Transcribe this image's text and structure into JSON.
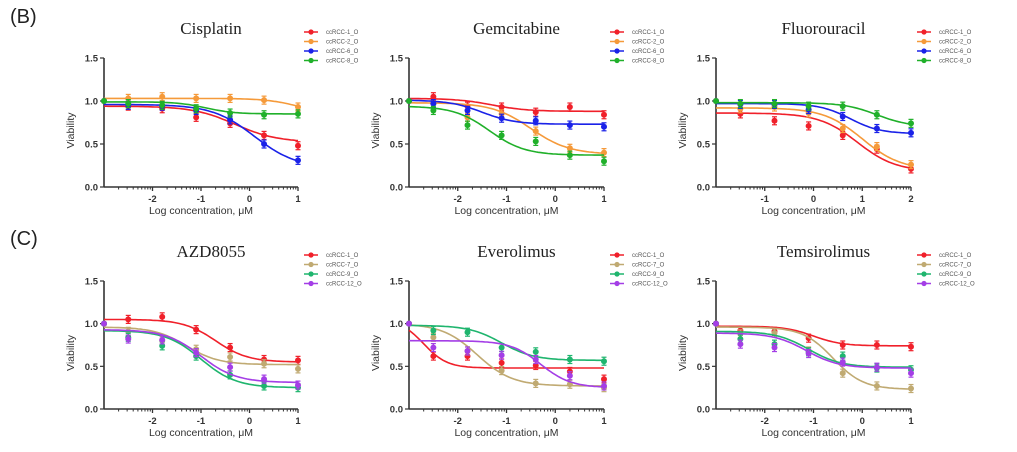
{
  "figure": {
    "panel_labels": [
      "(B)",
      "(C)"
    ]
  },
  "chart_data": [
    {
      "type": "line",
      "panel": "B",
      "title": "Cisplatin",
      "xlabel": "Log concentration, μM",
      "ylabel": "Viability",
      "xlim": [
        -3,
        1
      ],
      "ylim": [
        0,
        1.5
      ],
      "xticks": [
        -2,
        -1,
        0,
        1
      ],
      "yticks": [
        "0.0",
        "0.5",
        "1.0",
        "1.5"
      ],
      "legend_position": "top-right",
      "x": [
        -3,
        -2.5,
        -1.8,
        -1.1,
        -0.4,
        0.3,
        1.0
      ],
      "series": [
        {
          "name": "ccRCC-1_O",
          "color": "#f0202a",
          "values": [
            1.0,
            0.94,
            0.91,
            0.81,
            0.74,
            0.6,
            0.48
          ],
          "fit": {
            "top": 0.94,
            "bottom": 0.52,
            "ec50": -0.3,
            "hill": 1.0
          }
        },
        {
          "name": "ccRCC-2_O",
          "color": "#f59a3a",
          "values": [
            1.0,
            1.03,
            1.05,
            1.03,
            1.03,
            1.01,
            0.93
          ],
          "fit": {
            "top": 1.03,
            "bottom": 0.85,
            "ec50": 1.0,
            "hill": 1.3
          }
        },
        {
          "name": "ccRCC-6_O",
          "color": "#1a22e8",
          "values": [
            1.0,
            0.95,
            0.94,
            0.89,
            0.78,
            0.5,
            0.31
          ],
          "fit": {
            "top": 0.96,
            "bottom": 0.22,
            "ec50": 0.1,
            "hill": 1.0
          }
        },
        {
          "name": "ccRCC-8_O",
          "color": "#20b02a",
          "values": [
            1.0,
            0.97,
            0.95,
            0.91,
            0.86,
            0.84,
            0.85
          ],
          "fit": {
            "top": 0.99,
            "bottom": 0.85,
            "ec50": -0.9,
            "hill": 1.5
          }
        }
      ]
    },
    {
      "type": "line",
      "panel": "B",
      "title": "Gemcitabine",
      "xlabel": "Log concentration, μM",
      "ylabel": "Viability",
      "xlim": [
        -3,
        1
      ],
      "ylim": [
        0,
        1.5
      ],
      "xticks": [
        -2,
        -1,
        0,
        1
      ],
      "yticks": [
        "0.0",
        "0.5",
        "1.0",
        "1.5"
      ],
      "legend_position": "top-right",
      "x": [
        -3,
        -2.5,
        -1.8,
        -1.1,
        -0.4,
        0.3,
        1.0
      ],
      "series": [
        {
          "name": "ccRCC-1_O",
          "color": "#f0202a",
          "values": [
            1.0,
            1.05,
            0.94,
            0.93,
            0.87,
            0.93,
            0.84
          ],
          "fit": {
            "top": 1.03,
            "bottom": 0.88,
            "ec50": -1.3,
            "hill": 1.2
          }
        },
        {
          "name": "ccRCC-2_O",
          "color": "#f59a3a",
          "values": [
            1.0,
            0.97,
            0.81,
            0.85,
            0.65,
            0.45,
            0.4
          ],
          "fit": {
            "top": 0.98,
            "bottom": 0.38,
            "ec50": -0.5,
            "hill": 1.1
          }
        },
        {
          "name": "ccRCC-6_O",
          "color": "#1a22e8",
          "values": [
            1.0,
            0.97,
            0.89,
            0.8,
            0.77,
            0.72,
            0.7
          ],
          "fit": {
            "top": 1.01,
            "bottom": 0.73,
            "ec50": -1.5,
            "hill": 1.3
          }
        },
        {
          "name": "ccRCC-8_O",
          "color": "#20b02a",
          "values": [
            1.0,
            0.89,
            0.72,
            0.6,
            0.53,
            0.37,
            0.3
          ],
          "fit": {
            "top": 0.94,
            "bottom": 0.37,
            "ec50": -1.35,
            "hill": 1.2
          }
        }
      ]
    },
    {
      "type": "line",
      "panel": "B",
      "title": "Fluorouracil",
      "xlabel": "Log concentration, μM",
      "ylabel": "Viability",
      "xlim": [
        -2,
        2
      ],
      "ylim": [
        0,
        1.5
      ],
      "xticks": [
        -1,
        0,
        1,
        2
      ],
      "yticks": [
        "0.0",
        "0.5",
        "1.0",
        "1.5"
      ],
      "legend_position": "top-right",
      "x": [
        -2,
        -1.5,
        -0.8,
        -0.1,
        0.6,
        1.3,
        2.0
      ],
      "series": [
        {
          "name": "ccRCC-1_O",
          "color": "#f0202a",
          "values": [
            1.0,
            0.85,
            0.77,
            0.71,
            0.6,
            0.44,
            0.21
          ],
          "fit": {
            "top": 0.86,
            "bottom": 0.18,
            "ec50": 0.9,
            "hill": 1.1
          }
        },
        {
          "name": "ccRCC-2_O",
          "color": "#f59a3a",
          "values": [
            1.0,
            0.91,
            0.93,
            0.86,
            0.68,
            0.47,
            0.26
          ],
          "fit": {
            "top": 0.92,
            "bottom": 0.2,
            "ec50": 1.0,
            "hill": 1.1
          }
        },
        {
          "name": "ccRCC-6_O",
          "color": "#1a22e8",
          "values": [
            1.0,
            0.96,
            0.96,
            0.9,
            0.82,
            0.68,
            0.63
          ],
          "fit": {
            "top": 0.97,
            "bottom": 0.62,
            "ec50": 0.75,
            "hill": 1.4
          }
        },
        {
          "name": "ccRCC-8_O",
          "color": "#20b02a",
          "values": [
            1.0,
            0.97,
            0.97,
            0.94,
            0.94,
            0.84,
            0.74
          ],
          "fit": {
            "top": 0.98,
            "bottom": 0.7,
            "ec50": 1.3,
            "hill": 1.3
          }
        }
      ]
    },
    {
      "type": "line",
      "panel": "C",
      "title": "AZD8055",
      "xlabel": "Log concentration, μM",
      "ylabel": "Viability",
      "xlim": [
        -3,
        1
      ],
      "ylim": [
        0,
        1.5
      ],
      "xticks": [
        -2,
        -1,
        0,
        1
      ],
      "yticks": [
        "0.0",
        "0.5",
        "1.0",
        "1.5"
      ],
      "legend_position": "top-right",
      "x": [
        -3,
        -2.5,
        -1.8,
        -1.1,
        -0.4,
        0.3,
        1.0
      ],
      "series": [
        {
          "name": "ccRCC-1_O",
          "color": "#f0202a",
          "values": [
            1.0,
            1.05,
            1.08,
            0.93,
            0.72,
            0.58,
            0.57
          ],
          "fit": {
            "top": 1.05,
            "bottom": 0.55,
            "ec50": -0.7,
            "hill": 1.3
          }
        },
        {
          "name": "ccRCC-7_O",
          "color": "#c0aa72",
          "values": [
            1.0,
            0.91,
            0.8,
            0.7,
            0.61,
            0.53,
            0.47
          ],
          "fit": {
            "top": 0.96,
            "bottom": 0.52,
            "ec50": -1.3,
            "hill": 1.3
          }
        },
        {
          "name": "ccRCC-9_O",
          "color": "#1fb56e",
          "values": [
            1.0,
            0.84,
            0.74,
            0.62,
            0.4,
            0.27,
            0.25
          ],
          "fit": {
            "top": 0.92,
            "bottom": 0.25,
            "ec50": -1.0,
            "hill": 1.2
          }
        },
        {
          "name": "ccRCC-12_O",
          "color": "#a43ee6",
          "values": [
            1.0,
            0.82,
            0.81,
            0.66,
            0.49,
            0.35,
            0.28
          ],
          "fit": {
            "top": 0.93,
            "bottom": 0.31,
            "ec50": -1.0,
            "hill": 1.2
          }
        }
      ]
    },
    {
      "type": "line",
      "panel": "C",
      "title": "Everolimus",
      "xlabel": "Log concentration, μM",
      "ylabel": "Viability",
      "xlim": [
        -3,
        1
      ],
      "ylim": [
        0,
        1.5
      ],
      "xticks": [
        -2,
        -1,
        0,
        1
      ],
      "yticks": [
        "0.0",
        "0.5",
        "1.0",
        "1.5"
      ],
      "legend_position": "top-right",
      "x": [
        -3,
        -2.5,
        -1.8,
        -1.1,
        -0.4,
        0.3,
        1.0
      ],
      "series": [
        {
          "name": "ccRCC-1_O",
          "color": "#f0202a",
          "values": [
            1.0,
            0.62,
            0.62,
            0.54,
            0.51,
            0.44,
            0.35
          ],
          "fit": {
            "top": 1.05,
            "bottom": 0.48,
            "ec50": -2.7,
            "hill": 1.8
          }
        },
        {
          "name": "ccRCC-7_O",
          "color": "#c0aa72",
          "values": [
            1.0,
            0.84,
            0.68,
            0.45,
            0.3,
            0.29,
            0.25
          ],
          "fit": {
            "top": 1.0,
            "bottom": 0.27,
            "ec50": -1.6,
            "hill": 1.2
          }
        },
        {
          "name": "ccRCC-9_O",
          "color": "#1fb56e",
          "values": [
            1.0,
            0.92,
            0.9,
            0.72,
            0.67,
            0.58,
            0.56
          ],
          "fit": {
            "top": 0.98,
            "bottom": 0.57,
            "ec50": -1.1,
            "hill": 1.3
          }
        },
        {
          "name": "ccRCC-12_O",
          "color": "#a43ee6",
          "values": [
            1.0,
            0.72,
            0.68,
            0.63,
            0.58,
            0.39,
            0.27
          ],
          "fit": {
            "top": 0.8,
            "bottom": 0.25,
            "ec50": -0.3,
            "hill": 1.4
          }
        }
      ]
    },
    {
      "type": "line",
      "panel": "C",
      "title": "Temsirolimus",
      "xlabel": "Log concentration, μM",
      "ylabel": "Viability",
      "xlim": [
        -3,
        1
      ],
      "ylim": [
        0,
        1.5
      ],
      "xticks": [
        -2,
        -1,
        0,
        1
      ],
      "yticks": [
        "0.0",
        "0.5",
        "1.0",
        "1.5"
      ],
      "legend_position": "top-right",
      "x": [
        -3,
        -2.5,
        -1.8,
        -1.1,
        -0.4,
        0.3,
        1.0
      ],
      "series": [
        {
          "name": "ccRCC-1_O",
          "color": "#f0202a",
          "values": [
            1.0,
            0.92,
            0.91,
            0.83,
            0.75,
            0.75,
            0.73
          ],
          "fit": {
            "top": 0.97,
            "bottom": 0.74,
            "ec50": -1.0,
            "hill": 1.5
          }
        },
        {
          "name": "ccRCC-7_O",
          "color": "#c0aa72",
          "values": [
            1.0,
            0.88,
            0.89,
            0.68,
            0.42,
            0.27,
            0.24
          ],
          "fit": {
            "top": 0.96,
            "bottom": 0.23,
            "ec50": -0.6,
            "hill": 1.4
          }
        },
        {
          "name": "ccRCC-9_O",
          "color": "#1fb56e",
          "values": [
            1.0,
            0.82,
            0.76,
            0.67,
            0.62,
            0.48,
            0.46
          ],
          "fit": {
            "top": 0.91,
            "bottom": 0.49,
            "ec50": -1.1,
            "hill": 1.3
          }
        },
        {
          "name": "ccRCC-12_O",
          "color": "#a43ee6",
          "values": [
            1.0,
            0.76,
            0.72,
            0.65,
            0.55,
            0.49,
            0.42
          ],
          "fit": {
            "top": 0.89,
            "bottom": 0.48,
            "ec50": -1.15,
            "hill": 1.3
          }
        }
      ]
    }
  ]
}
